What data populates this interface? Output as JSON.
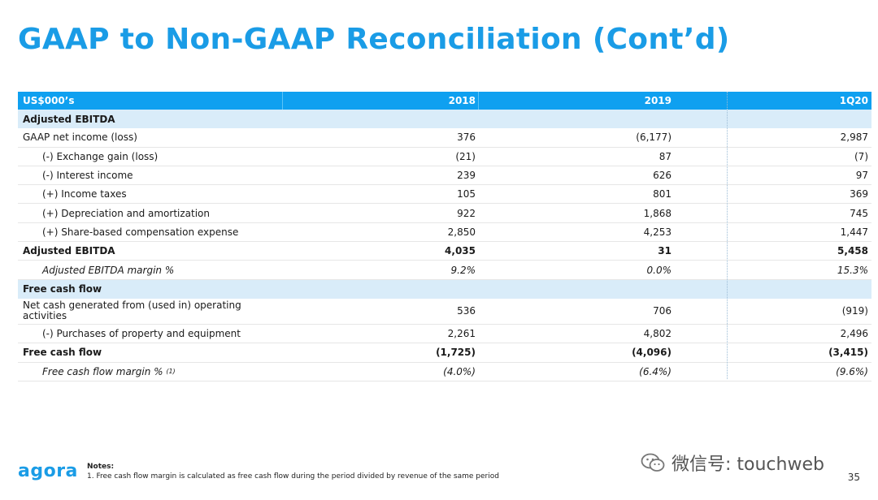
{
  "title": "GAAP to Non-GAAP Reconciliation (Cont’d)",
  "table": {
    "header": {
      "label": "US$000’s",
      "c2018": "2018",
      "c2019": "2019",
      "c1q20": "1Q20"
    },
    "rows": [
      {
        "label": "Adjusted EBITDA"
      },
      {
        "label": "GAAP net income (loss)",
        "c2018": "376",
        "c2019": "(6,177)",
        "c1q20": "2,987"
      },
      {
        "label": "(-) Exchange gain (loss)",
        "c2018": "(21)",
        "c2019": "87",
        "c1q20": "(7)"
      },
      {
        "label": "(-) Interest income",
        "c2018": "239",
        "c2019": "626",
        "c1q20": "97"
      },
      {
        "label": "(+) Income taxes",
        "c2018": "105",
        "c2019": "801",
        "c1q20": "369"
      },
      {
        "label": "(+) Depreciation and amortization",
        "c2018": "922",
        "c2019": "1,868",
        "c1q20": "745"
      },
      {
        "label": "(+) Share-based compensation expense",
        "c2018": "2,850",
        "c2019": "4,253",
        "c1q20": "1,447"
      },
      {
        "label": "Adjusted EBITDA",
        "c2018": "4,035",
        "c2019": "31",
        "c1q20": "5,458"
      },
      {
        "label": "Adjusted EBITDA margin %",
        "c2018": "9.2%",
        "c2019": "0.0%",
        "c1q20": "15.3%"
      },
      {
        "label": "Free cash flow"
      },
      {
        "label": "Net cash generated from (used in) operating activities",
        "c2018": "536",
        "c2019": "706",
        "c1q20": "(919)"
      },
      {
        "label": "(-) Purchases of property and equipment",
        "c2018": "2,261",
        "c2019": "4,802",
        "c1q20": "2,496"
      },
      {
        "label": "Free cash flow",
        "c2018": "(1,725)",
        "c2019": "(4,096)",
        "c1q20": "(3,415)"
      },
      {
        "label": "Free cash flow margin %",
        "sup": "(1)",
        "c2018": "(4.0%)",
        "c2019": "(6.4%)",
        "c1q20": "(9.6%)"
      }
    ]
  },
  "logo": "agora",
  "notes": {
    "heading": "Notes:",
    "items": [
      "1.  Free cash flow margin is calculated as free cash flow during the period divided by revenue of the same period"
    ]
  },
  "watermark": {
    "text": "微信号: touchweb",
    "icon": "wechat-icon"
  },
  "page_number": "35",
  "colors": {
    "accent": "#1a9ce6",
    "header_bg": "#0fa0f0",
    "section_bg": "#d9ecf9"
  }
}
